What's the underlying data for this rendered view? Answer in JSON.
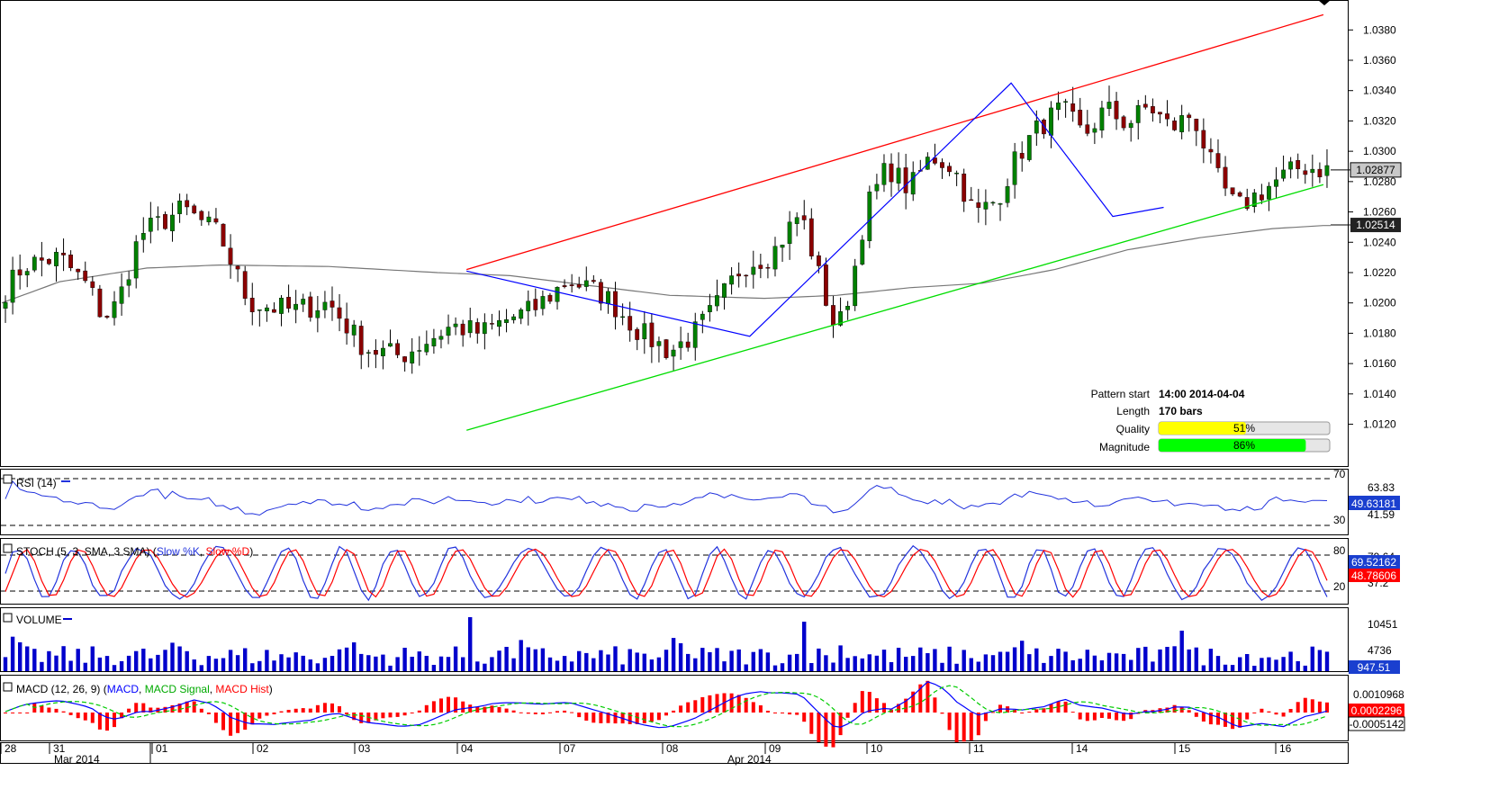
{
  "pattern_info": {
    "start_label": "Pattern start",
    "start_value": "14:00 2014-04-04",
    "length_label": "Length",
    "length_value": "170 bars",
    "quality_label": "Quality",
    "quality_value": "51%",
    "quality_fraction": 0.51,
    "magnitude_label": "Magnitude",
    "magnitude_value": "86%",
    "magnitude_fraction": 0.86
  },
  "colors": {
    "resistance": "#ff0000",
    "support": "#00dd00",
    "zigzag": "#0000ff",
    "ma": "#777777",
    "bull": "#008000",
    "bear": "#8b0000",
    "quality_bar": "#ffff00",
    "magnitude_bar": "#00ff00",
    "rsi": "#2233dd",
    "stoch_k": "#2233dd",
    "stoch_d": "#ff0000",
    "volume": "#0000cc",
    "macd": "#0000ff",
    "macd_signal": "#00cc00",
    "macd_hist": "#ff0000"
  },
  "panels": {
    "rsi": {
      "title": "RSI (14)",
      "levels": [
        "70",
        "30"
      ],
      "ticks": [
        "63.83",
        "41.59"
      ],
      "badge": "49.63181"
    },
    "stoch": {
      "title_prefix": "STOCH (5, 3, SMA, 3 SMA) (",
      "k_label": "Slow %K",
      "sep": ", ",
      "d_label": "Slow %D",
      "title_suffix": ")",
      "levels": [
        "80",
        "20"
      ],
      "ticks": [
        "79.64",
        "37.2"
      ],
      "badge_k": "69.52162",
      "badge_d": "48.78606"
    },
    "volume": {
      "title": "VOLUME",
      "ticks": [
        "10451",
        "4736"
      ],
      "badge": "947.51"
    },
    "macd": {
      "title_prefix": "MACD (12, 26, 9) (",
      "macd_label": "MACD",
      "sep1": ", ",
      "signal_label": "MACD Signal",
      "sep2": ", ",
      "hist_label": "MACD Hist",
      "title_suffix": ")",
      "ticks": [
        "0.0010968"
      ],
      "badge_hist": "0.0002296",
      "badge_macd": "-0.0005142"
    }
  },
  "x_axis": {
    "days": [
      "28",
      "31",
      "01",
      "02",
      "03",
      "04",
      "07",
      "08",
      "09",
      "10",
      "11",
      "14",
      "15",
      "16"
    ],
    "months": [
      "Mar 2014",
      "Apr 2014"
    ]
  },
  "chart_data": {
    "type": "candlestick",
    "bars": 170,
    "y_ticks": [
      "1.0380",
      "1.0360",
      "1.0340",
      "1.0320",
      "1.0300",
      "1.0280",
      "1.0260",
      "1.0240",
      "1.0220",
      "1.0200",
      "1.0180",
      "1.0160",
      "1.0140",
      "1.0120"
    ],
    "ylim": [
      1.0096,
      1.0395
    ],
    "last_price": "1.02877",
    "ma_value": "1.02514",
    "x_dates": [
      "28",
      "31",
      "01",
      "02",
      "03",
      "04",
      "07",
      "08",
      "09",
      "10",
      "11",
      "14",
      "15",
      "16"
    ],
    "close_anchors": [
      [
        0,
        1.0205
      ],
      [
        3,
        1.0225
      ],
      [
        8,
        1.023
      ],
      [
        12,
        1.021
      ],
      [
        14,
        1.019
      ],
      [
        16,
        1.02
      ],
      [
        19,
        1.0245
      ],
      [
        25,
        1.0262
      ],
      [
        30,
        1.0245
      ],
      [
        34,
        1.02
      ],
      [
        40,
        1.0195
      ],
      [
        45,
        1.02
      ],
      [
        50,
        1.017
      ],
      [
        55,
        1.0165
      ],
      [
        62,
        1.0185
      ],
      [
        66,
        1.018
      ],
      [
        70,
        1.019
      ],
      [
        73,
        1.0195
      ],
      [
        78,
        1.0215
      ],
      [
        83,
        1.0205
      ],
      [
        88,
        1.018
      ],
      [
        92,
        1.0168
      ],
      [
        95,
        1.0178
      ],
      [
        98,
        1.0195
      ],
      [
        102,
        1.0225
      ],
      [
        106,
        1.0232
      ],
      [
        110,
        1.026
      ],
      [
        113,
        1.021
      ],
      [
        115,
        1.018
      ],
      [
        117,
        1.0212
      ],
      [
        119,
        1.0262
      ],
      [
        122,
        1.029
      ],
      [
        125,
        1.0275
      ],
      [
        128,
        1.0297
      ],
      [
        131,
        1.029
      ],
      [
        134,
        1.0258
      ],
      [
        137,
        1.0268
      ],
      [
        140,
        1.0298
      ],
      [
        143,
        1.0317
      ],
      [
        146,
        1.0328
      ],
      [
        149,
        1.031
      ],
      [
        152,
        1.0328
      ],
      [
        155,
        1.0318
      ],
      [
        158,
        1.033
      ],
      [
        161,
        1.0315
      ],
      [
        164,
        1.0325
      ],
      [
        167,
        1.0285
      ],
      [
        170,
        1.0262
      ],
      [
        173,
        1.0272
      ],
      [
        176,
        1.0282
      ],
      [
        179,
        1.029
      ],
      [
        182,
        1.0288
      ]
    ],
    "ma_anchors": [
      [
        0,
        1.02
      ],
      [
        8,
        1.0214
      ],
      [
        20,
        1.0223
      ],
      [
        30,
        1.0225
      ],
      [
        45,
        1.0224
      ],
      [
        60,
        1.022
      ],
      [
        70,
        1.0218
      ],
      [
        80,
        1.0212
      ],
      [
        92,
        1.0205
      ],
      [
        105,
        1.0203
      ],
      [
        115,
        1.0205
      ],
      [
        125,
        1.021
      ],
      [
        135,
        1.0213
      ],
      [
        145,
        1.0222
      ],
      [
        155,
        1.0235
      ],
      [
        165,
        1.0243
      ],
      [
        175,
        1.0249
      ],
      [
        182,
        1.0251
      ]
    ],
    "resistance_line": [
      [
        64,
        1.0222
      ],
      [
        182,
        1.039
      ]
    ],
    "support_line": [
      [
        64,
        1.0116
      ],
      [
        182,
        1.0278
      ]
    ],
    "zigzag": [
      [
        64,
        1.0221
      ],
      [
        103,
        1.0178
      ],
      [
        139,
        1.0345
      ],
      [
        153,
        1.0257
      ],
      [
        160,
        1.0263
      ]
    ],
    "x_range": [
      0,
      183
    ]
  }
}
